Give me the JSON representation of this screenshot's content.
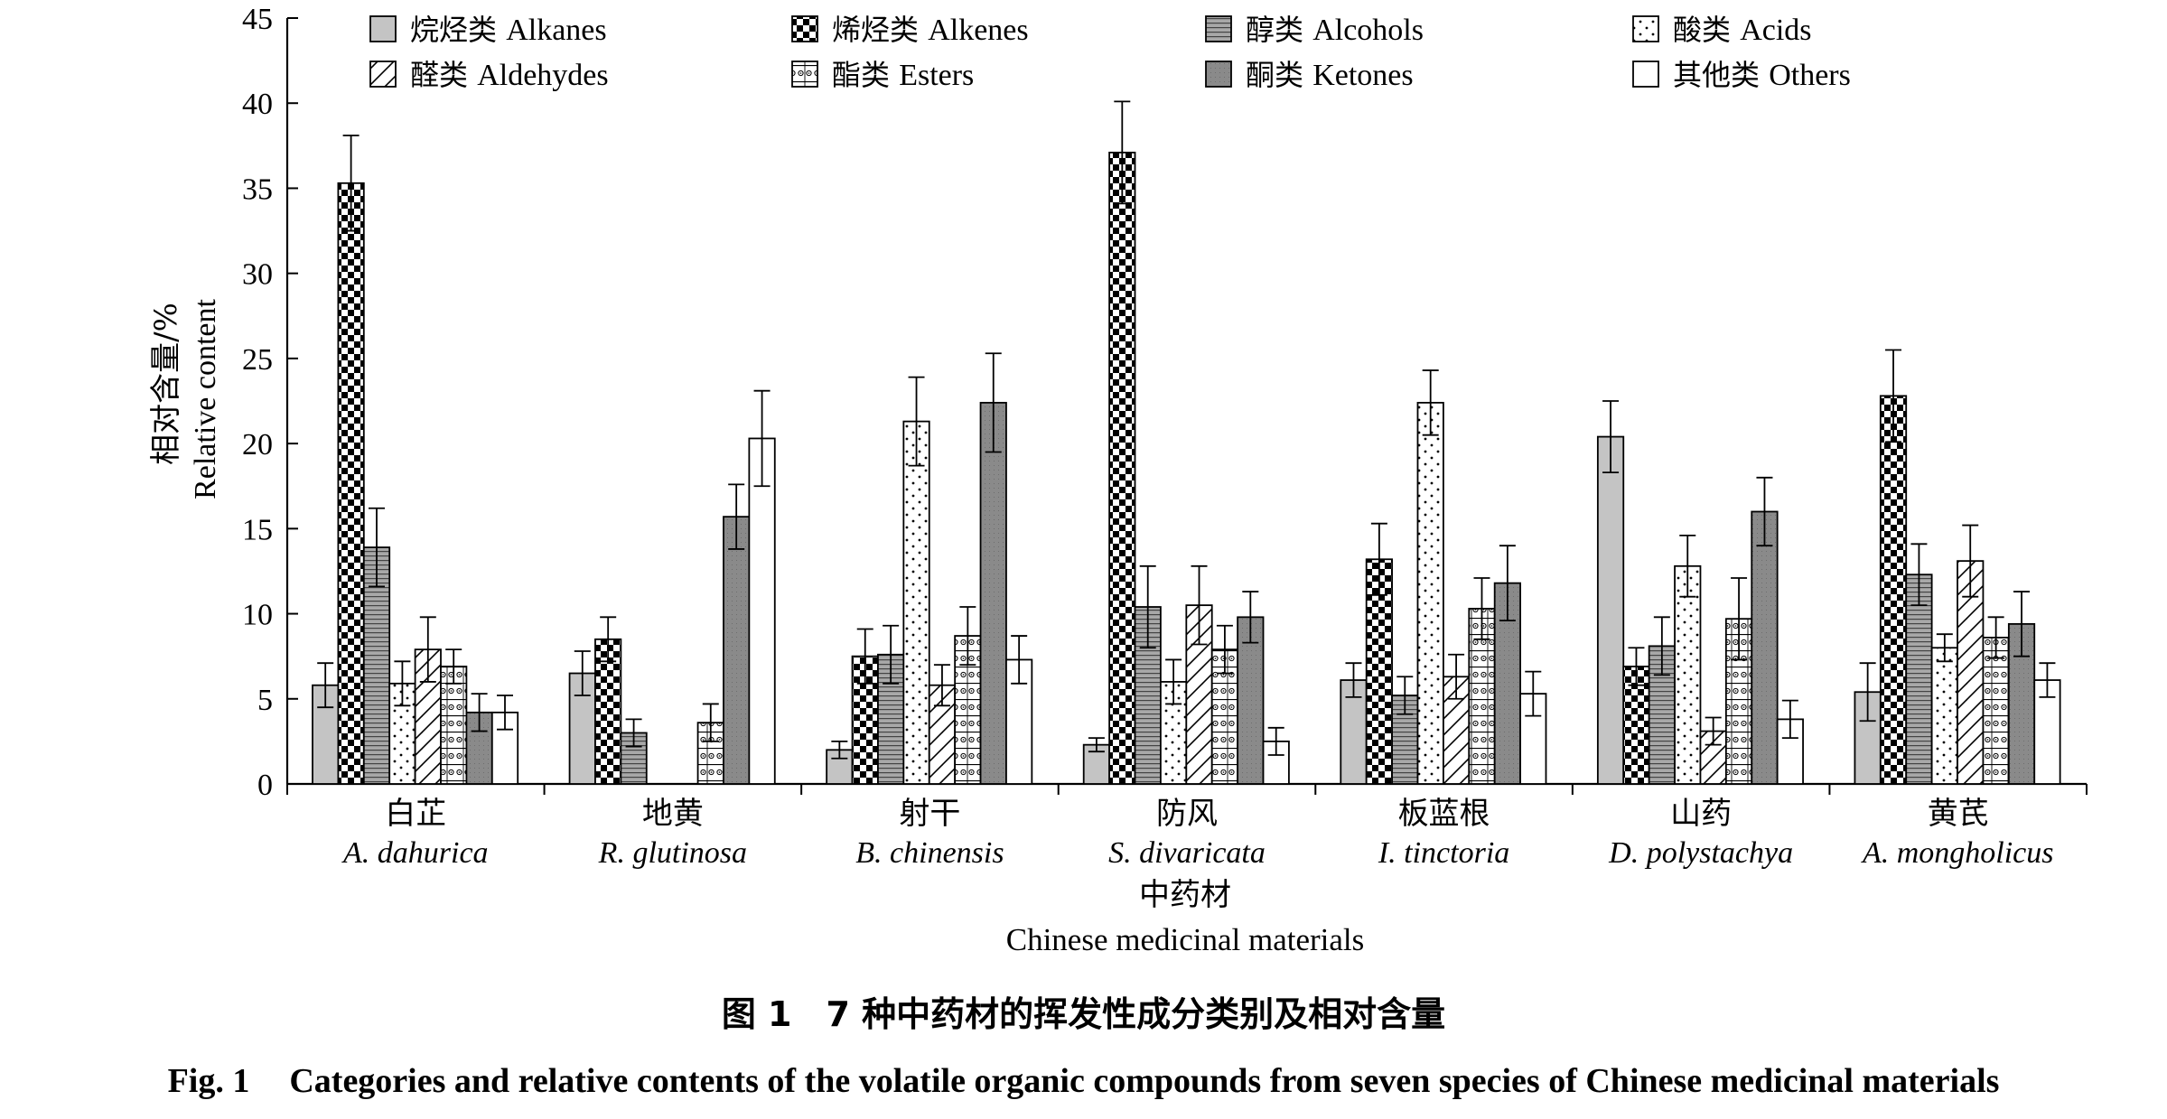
{
  "chart_data": {
    "type": "bar",
    "title": "",
    "ylabel_cn": "相对含量/%",
    "ylabel_en": "Relative content",
    "xlabel_cn": "中药材",
    "xlabel_en": "Chinese medicinal materials",
    "ylim": [
      0,
      45
    ],
    "yticks": [
      0,
      5,
      10,
      15,
      20,
      25,
      30,
      35,
      40,
      45
    ],
    "categories": [
      {
        "cn": "白芷",
        "latin": "A. dahurica"
      },
      {
        "cn": "地黄",
        "latin": "R. glutinosa"
      },
      {
        "cn": "射干",
        "latin": "B. chinensis"
      },
      {
        "cn": "防风",
        "latin": "S. divaricata"
      },
      {
        "cn": "板蓝根",
        "latin": "I. tinctoria"
      },
      {
        "cn": "山药",
        "latin": "D. polystachya"
      },
      {
        "cn": "黄芪",
        "latin": "A. mongholicus"
      }
    ],
    "series": [
      {
        "name_cn": "烷烃类",
        "name_en": "Alkanes",
        "pattern": "gray",
        "values": [
          5.8,
          6.5,
          2.0,
          2.3,
          6.1,
          20.4,
          5.4
        ],
        "errors": [
          1.3,
          1.3,
          0.5,
          0.4,
          1.0,
          2.1,
          1.7
        ]
      },
      {
        "name_cn": "烯烃类",
        "name_en": "Alkenes",
        "pattern": "checker",
        "values": [
          35.3,
          8.5,
          7.5,
          37.1,
          13.2,
          6.9,
          22.8
        ],
        "errors": [
          2.8,
          1.3,
          1.6,
          3.0,
          2.1,
          1.1,
          2.7
        ]
      },
      {
        "name_cn": "醇类",
        "name_en": "Alcohols",
        "pattern": "hlines",
        "values": [
          13.9,
          3.0,
          7.6,
          10.4,
          5.2,
          8.1,
          12.3
        ],
        "errors": [
          2.3,
          0.8,
          1.7,
          2.4,
          1.1,
          1.7,
          1.8
        ]
      },
      {
        "name_cn": "酸类",
        "name_en": "Acids",
        "pattern": "dots",
        "values": [
          5.9,
          0,
          21.3,
          6.0,
          22.4,
          12.8,
          8.0
        ],
        "errors": [
          1.3,
          0,
          2.6,
          1.3,
          1.9,
          1.8,
          0.8
        ]
      },
      {
        "name_cn": "醛类",
        "name_en": "Aldehydes",
        "pattern": "diag",
        "values": [
          7.9,
          0,
          5.8,
          10.5,
          6.3,
          3.1,
          13.1
        ],
        "errors": [
          1.9,
          0,
          1.2,
          2.3,
          1.3,
          0.8,
          2.1
        ]
      },
      {
        "name_cn": "酯类",
        "name_en": "Esters",
        "pattern": "circles",
        "values": [
          6.9,
          3.6,
          8.7,
          7.9,
          10.3,
          9.7,
          8.6
        ],
        "errors": [
          1.0,
          1.1,
          1.7,
          1.4,
          1.8,
          2.4,
          1.2
        ]
      },
      {
        "name_cn": "酮类",
        "name_en": "Ketones",
        "pattern": "darkgray",
        "values": [
          4.2,
          15.7,
          22.4,
          9.8,
          11.8,
          16.0,
          9.4
        ],
        "errors": [
          1.1,
          1.9,
          2.9,
          1.5,
          2.2,
          2.0,
          1.9
        ]
      },
      {
        "name_cn": "其他类",
        "name_en": "Others",
        "pattern": "white",
        "values": [
          4.2,
          20.3,
          7.3,
          2.5,
          5.3,
          3.8,
          6.1
        ],
        "errors": [
          1.0,
          2.8,
          1.4,
          0.8,
          1.3,
          1.1,
          1.0
        ]
      }
    ]
  },
  "caption": {
    "cn": "图 1　7 种中药材的挥发性成分类别及相对含量",
    "en_number": "Fig. 1",
    "en_text": "Categories and relative contents of the volatile organic compounds from seven species of Chinese medicinal materials"
  }
}
